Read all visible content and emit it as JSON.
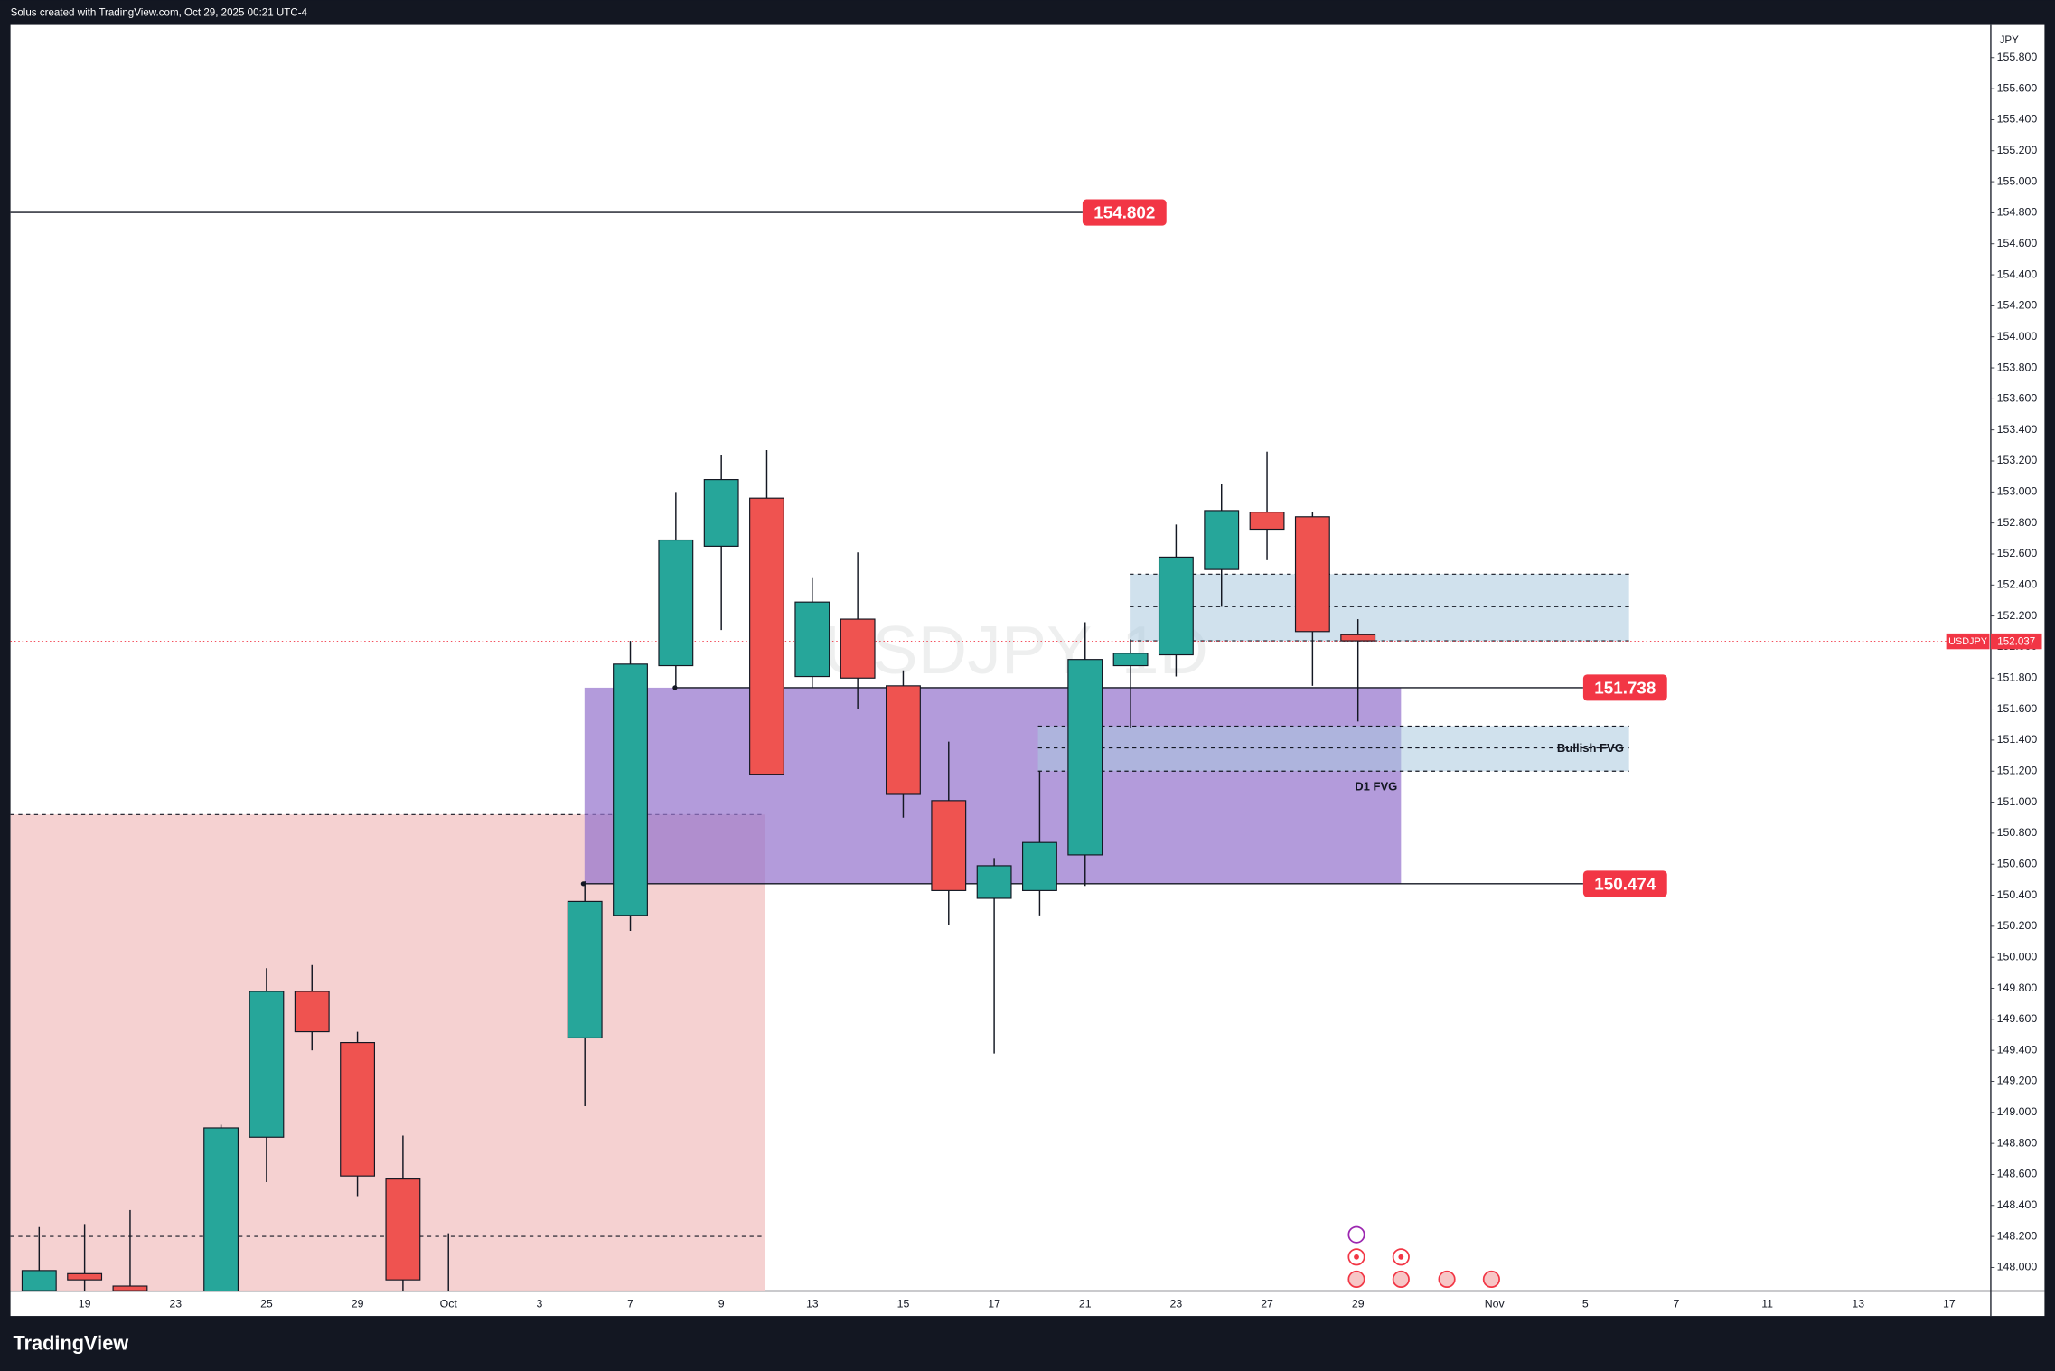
{
  "header": "Solus created with TradingView.com, Oct 29, 2025 00:21 UTC-4",
  "footer": "TradingView",
  "chart_data": {
    "type": "candlestick",
    "watermark": "USDJPY, 1D",
    "currency": "JPY",
    "categories": [
      null,
      "19",
      null,
      "23",
      null,
      "25",
      null,
      "29",
      null,
      "Oct",
      null,
      "3",
      null,
      "7",
      null,
      "9",
      null,
      "13",
      null,
      "15",
      null,
      "17",
      null,
      "21",
      null,
      "23",
      null,
      "27",
      null,
      "29",
      null,
      null,
      "Nov",
      null,
      "5",
      null,
      "7",
      null,
      "11",
      null,
      "13",
      null,
      "17",
      null
    ],
    "open": [
      147.85,
      147.96,
      147.88,
      null,
      147.7,
      148.84,
      149.78,
      149.45,
      148.57,
      147.7,
      null,
      null,
      149.48,
      150.27,
      151.88,
      152.65,
      152.96,
      151.81,
      152.18,
      151.75,
      151.01,
      150.38,
      150.43,
      150.66,
      151.88,
      151.95,
      152.5,
      152.87,
      152.84,
      152.08,
      null,
      null,
      null,
      null,
      null,
      null,
      null,
      null,
      null,
      null,
      null,
      null,
      null,
      null
    ],
    "high": [
      148.26,
      148.28,
      148.37,
      null,
      148.92,
      149.93,
      149.95,
      149.52,
      148.85,
      148.22,
      null,
      null,
      150.49,
      152.04,
      153.0,
      153.24,
      153.27,
      152.45,
      152.61,
      151.85,
      151.39,
      150.64,
      151.2,
      152.16,
      152.05,
      152.79,
      153.05,
      153.26,
      152.87,
      152.18,
      null,
      null,
      null,
      null,
      null,
      null,
      null,
      null,
      null,
      null,
      null,
      null,
      null,
      null
    ],
    "low": [
      147.75,
      147.8,
      147.75,
      null,
      147.65,
      148.55,
      149.4,
      148.46,
      147.8,
      147.4,
      null,
      null,
      149.04,
      150.17,
      151.73,
      152.11,
      151.18,
      151.74,
      151.6,
      150.9,
      150.21,
      149.38,
      150.27,
      150.46,
      151.48,
      151.81,
      152.26,
      152.56,
      151.75,
      151.52,
      null,
      null,
      null,
      null,
      null,
      null,
      null,
      null,
      null,
      null,
      null,
      null,
      null,
      null
    ],
    "close": [
      147.98,
      147.92,
      147.85,
      null,
      148.9,
      149.78,
      149.52,
      148.59,
      147.92,
      147.5,
      null,
      null,
      150.36,
      151.89,
      152.69,
      153.08,
      151.18,
      152.29,
      151.8,
      151.05,
      150.43,
      150.59,
      150.74,
      151.92,
      151.96,
      152.58,
      152.88,
      152.76,
      152.1,
      152.04,
      null,
      null,
      null,
      null,
      null,
      null,
      null,
      null,
      null,
      null,
      null,
      null,
      null,
      null
    ],
    "up_color": "#26a69a",
    "down_color": "#ef5350",
    "ylim": [
      147.848,
      156.011
    ],
    "yticks": [
      {
        "value": 148,
        "label": "148.000"
      },
      {
        "value": 148.2,
        "label": "148.200"
      },
      {
        "value": 148.4,
        "label": "148.400"
      },
      {
        "value": 148.6,
        "label": "148.600"
      },
      {
        "value": 148.8,
        "label": "148.800"
      },
      {
        "value": 149,
        "label": "149.000"
      },
      {
        "value": 149.2,
        "label": "149.200"
      },
      {
        "value": 149.4,
        "label": "149.400"
      },
      {
        "value": 149.6,
        "label": "149.600"
      },
      {
        "value": 149.8,
        "label": "149.800"
      },
      {
        "value": 150,
        "label": "150.000"
      },
      {
        "value": 150.2,
        "label": "150.200"
      },
      {
        "value": 150.4,
        "label": "150.400"
      },
      {
        "value": 150.6,
        "label": "150.600"
      },
      {
        "value": 150.8,
        "label": "150.800"
      },
      {
        "value": 151,
        "label": "151.000"
      },
      {
        "value": 151.2,
        "label": "151.200"
      },
      {
        "value": 151.4,
        "label": "151.400"
      },
      {
        "value": 151.6,
        "label": "151.600"
      },
      {
        "value": 151.8,
        "label": "151.800"
      },
      {
        "value": 152,
        "label": "152.000"
      },
      {
        "value": 152.2,
        "label": "152.200"
      },
      {
        "value": 152.4,
        "label": "152.400"
      },
      {
        "value": 152.6,
        "label": "152.600"
      },
      {
        "value": 152.8,
        "label": "152.800"
      },
      {
        "value": 153,
        "label": "153.000"
      },
      {
        "value": 153.2,
        "label": "153.200"
      },
      {
        "value": 153.4,
        "label": "153.400"
      },
      {
        "value": 153.6,
        "label": "153.600"
      },
      {
        "value": 153.8,
        "label": "153.800"
      },
      {
        "value": 154,
        "label": "154.000"
      },
      {
        "value": 154.2,
        "label": "154.200"
      },
      {
        "value": 154.4,
        "label": "154.400"
      },
      {
        "value": 154.6,
        "label": "154.600"
      },
      {
        "value": 154.8,
        "label": "154.800"
      },
      {
        "value": 155,
        "label": "155.000"
      },
      {
        "value": 155.2,
        "label": "155.200"
      },
      {
        "value": 155.4,
        "label": "155.400"
      },
      {
        "value": 155.6,
        "label": "155.600"
      },
      {
        "value": 155.8,
        "label": "155.800"
      }
    ],
    "levels": [
      {
        "value": 154.802
      },
      {
        "value": 151.738
      },
      {
        "value": 150.474
      }
    ],
    "last_price": {
      "symbol": "USDJPY",
      "value": 152.037
    },
    "zones": [
      {
        "top": 150.92,
        "bottom": 147.848,
        "color": "#f4cccc",
        "dashed": [
          150.92,
          148.2
        ]
      },
      {
        "top": 151.738,
        "bottom": 150.474,
        "color": "#9575cd"
      },
      {
        "top": 152.47,
        "bottom": 152.04,
        "color": "#a9c8de",
        "dashed": [
          152.47,
          152.26,
          152.04
        ]
      },
      {
        "top": 151.49,
        "bottom": 151.2,
        "color": "#a9c8de",
        "dashed": [
          151.49,
          151.35,
          151.2
        ],
        "label": "Bullish FVG"
      }
    ],
    "annotations": [
      {
        "text": "D1 FVG",
        "price": 151.18
      }
    ]
  }
}
